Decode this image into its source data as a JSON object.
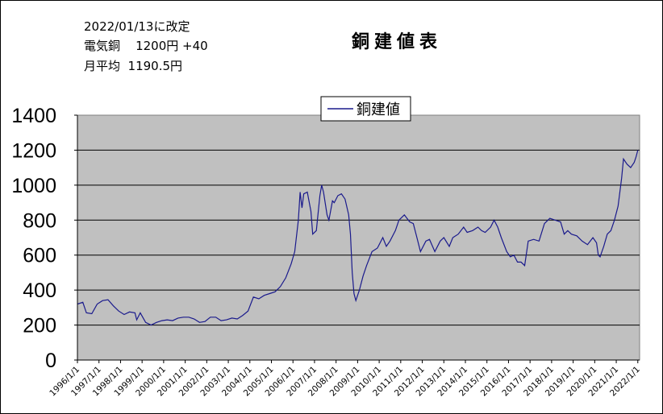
{
  "header": {
    "line1": "2022/01/13に改定",
    "line2": "電気銅    1200円 +40",
    "line3": "月平均  1190.5円"
  },
  "chart_data": {
    "type": "line",
    "title": "銅建値表",
    "xlabel": "",
    "ylabel": "",
    "ylim": [
      0,
      1400
    ],
    "yticks": [
      0,
      200,
      400,
      600,
      800,
      1000,
      1200,
      1400
    ],
    "grid": true,
    "legend_position": "top-center",
    "x_tick_labels": [
      "1996/1/1",
      "1997/1/1",
      "1998/1/1",
      "1999/1/1",
      "2000/1/1",
      "2001/1/1",
      "2002/1/1",
      "2003/1/1",
      "2004/1/1",
      "2005/1/1",
      "2006/1/1",
      "2007/1/1",
      "2008/1/1",
      "2009/1/1",
      "2010/1/1",
      "2011/1/1",
      "2012/1/1",
      "2013/1/1",
      "2014/1/1",
      "2015/1/1",
      "2016/1/1",
      "2017/1/1",
      "2018/1/1",
      "2019/1/1",
      "2020/1/1",
      "2021/1/1",
      "2022/1/1"
    ],
    "series": [
      {
        "name": "銅建値",
        "color": "#1a1a8c",
        "points": [
          [
            "1996-01",
            320
          ],
          [
            "1996-04",
            330
          ],
          [
            "1996-06",
            270
          ],
          [
            "1996-09",
            265
          ],
          [
            "1996-12",
            320
          ],
          [
            "1997-03",
            340
          ],
          [
            "1997-06",
            345
          ],
          [
            "1997-09",
            310
          ],
          [
            "1997-12",
            280
          ],
          [
            "1998-03",
            260
          ],
          [
            "1998-06",
            275
          ],
          [
            "1998-09",
            270
          ],
          [
            "1998-10",
            230
          ],
          [
            "1998-12",
            270
          ],
          [
            "1999-03",
            215
          ],
          [
            "1999-06",
            200
          ],
          [
            "1999-09",
            215
          ],
          [
            "1999-12",
            225
          ],
          [
            "2000-03",
            230
          ],
          [
            "2000-06",
            225
          ],
          [
            "2000-09",
            240
          ],
          [
            "2000-12",
            245
          ],
          [
            "2001-03",
            245
          ],
          [
            "2001-06",
            235
          ],
          [
            "2001-09",
            215
          ],
          [
            "2001-12",
            220
          ],
          [
            "2002-03",
            245
          ],
          [
            "2002-06",
            245
          ],
          [
            "2002-09",
            225
          ],
          [
            "2002-12",
            230
          ],
          [
            "2003-03",
            240
          ],
          [
            "2003-06",
            235
          ],
          [
            "2003-09",
            255
          ],
          [
            "2003-12",
            280
          ],
          [
            "2004-03",
            360
          ],
          [
            "2004-06",
            350
          ],
          [
            "2004-09",
            370
          ],
          [
            "2004-12",
            380
          ],
          [
            "2005-03",
            390
          ],
          [
            "2005-06",
            420
          ],
          [
            "2005-09",
            470
          ],
          [
            "2005-12",
            550
          ],
          [
            "2006-02",
            620
          ],
          [
            "2006-04",
            800
          ],
          [
            "2006-05",
            960
          ],
          [
            "2006-06",
            870
          ],
          [
            "2006-07",
            950
          ],
          [
            "2006-09",
            960
          ],
          [
            "2006-11",
            850
          ],
          [
            "2006-12",
            720
          ],
          [
            "2007-02",
            740
          ],
          [
            "2007-04",
            940
          ],
          [
            "2007-05",
            1000
          ],
          [
            "2007-06",
            960
          ],
          [
            "2007-08",
            830
          ],
          [
            "2007-09",
            800
          ],
          [
            "2007-11",
            910
          ],
          [
            "2007-12",
            900
          ],
          [
            "2008-02",
            940
          ],
          [
            "2008-04",
            950
          ],
          [
            "2008-06",
            920
          ],
          [
            "2008-08",
            830
          ],
          [
            "2008-09",
            720
          ],
          [
            "2008-10",
            500
          ],
          [
            "2008-11",
            380
          ],
          [
            "2008-12",
            340
          ],
          [
            "2009-02",
            400
          ],
          [
            "2009-04",
            480
          ],
          [
            "2009-06",
            540
          ],
          [
            "2009-09",
            620
          ],
          [
            "2009-12",
            640
          ],
          [
            "2010-03",
            700
          ],
          [
            "2010-05",
            650
          ],
          [
            "2010-07",
            680
          ],
          [
            "2010-10",
            740
          ],
          [
            "2010-12",
            800
          ],
          [
            "2011-03",
            830
          ],
          [
            "2011-06",
            790
          ],
          [
            "2011-08",
            780
          ],
          [
            "2011-10",
            700
          ],
          [
            "2011-12",
            620
          ],
          [
            "2012-03",
            680
          ],
          [
            "2012-05",
            690
          ],
          [
            "2012-08",
            620
          ],
          [
            "2012-11",
            680
          ],
          [
            "2013-01",
            700
          ],
          [
            "2013-04",
            650
          ],
          [
            "2013-06",
            700
          ],
          [
            "2013-09",
            720
          ],
          [
            "2013-12",
            760
          ],
          [
            "2014-02",
            730
          ],
          [
            "2014-05",
            740
          ],
          [
            "2014-08",
            760
          ],
          [
            "2014-10",
            740
          ],
          [
            "2014-12",
            730
          ],
          [
            "2015-03",
            760
          ],
          [
            "2015-05",
            800
          ],
          [
            "2015-07",
            760
          ],
          [
            "2015-09",
            700
          ],
          [
            "2015-12",
            620
          ],
          [
            "2016-02",
            590
          ],
          [
            "2016-04",
            600
          ],
          [
            "2016-06",
            560
          ],
          [
            "2016-08",
            560
          ],
          [
            "2016-10",
            540
          ],
          [
            "2016-12",
            680
          ],
          [
            "2017-03",
            690
          ],
          [
            "2017-06",
            680
          ],
          [
            "2017-09",
            780
          ],
          [
            "2017-12",
            810
          ],
          [
            "2018-03",
            800
          ],
          [
            "2018-06",
            790
          ],
          [
            "2018-08",
            720
          ],
          [
            "2018-10",
            740
          ],
          [
            "2018-12",
            720
          ],
          [
            "2019-03",
            710
          ],
          [
            "2019-06",
            680
          ],
          [
            "2019-09",
            660
          ],
          [
            "2019-12",
            700
          ],
          [
            "2020-02",
            670
          ],
          [
            "2020-03",
            600
          ],
          [
            "2020-04",
            590
          ],
          [
            "2020-06",
            650
          ],
          [
            "2020-08",
            720
          ],
          [
            "2020-10",
            740
          ],
          [
            "2020-12",
            800
          ],
          [
            "2021-02",
            880
          ],
          [
            "2021-04",
            1040
          ],
          [
            "2021-05",
            1150
          ],
          [
            "2021-07",
            1120
          ],
          [
            "2021-09",
            1100
          ],
          [
            "2021-11",
            1130
          ],
          [
            "2021-12",
            1160
          ],
          [
            "2022-01",
            1200
          ]
        ]
      }
    ]
  }
}
